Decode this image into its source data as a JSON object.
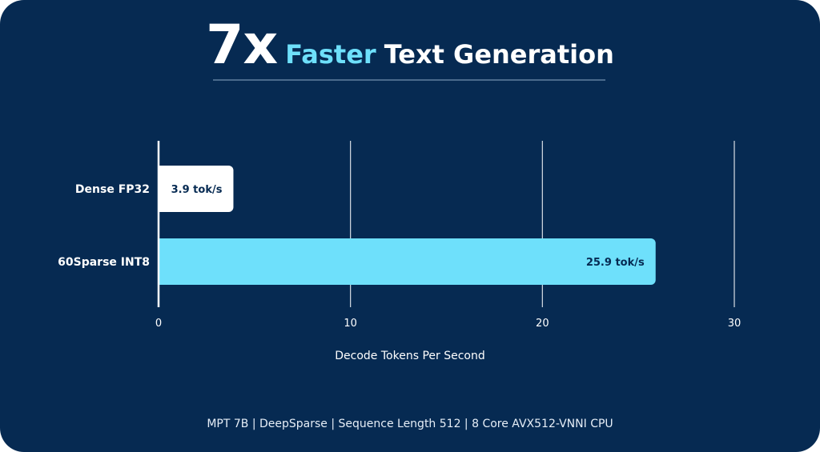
{
  "title": {
    "multiplier": "7x",
    "accent_word": "Faster",
    "rest": "Text Generation"
  },
  "colors": {
    "background": "#062a52",
    "accent": "#6ee0fb",
    "bar_dense": "#ffffff",
    "bar_sparse": "#6ee0fb",
    "gridline": "#ffffff",
    "bar_label_text": "#062a52"
  },
  "chart_data": {
    "type": "bar",
    "orientation": "horizontal",
    "categories": [
      "Dense FP32",
      "60Sparse INT8"
    ],
    "values": [
      3.9,
      25.9
    ],
    "data_labels": [
      "3.9 tok/s",
      "25.9 tok/s"
    ],
    "xlabel": "Decode Tokens Per Second",
    "ylabel": "",
    "xlim": [
      0,
      30
    ],
    "xticks": [
      0,
      10,
      20,
      30
    ],
    "xtick_labels": [
      "0",
      "10",
      "20",
      "30"
    ],
    "grid": true,
    "legend": "none"
  },
  "footnote": "MPT 7B | DeepSparse | Sequence Length 512 | 8 Core AVX512-VNNI CPU"
}
